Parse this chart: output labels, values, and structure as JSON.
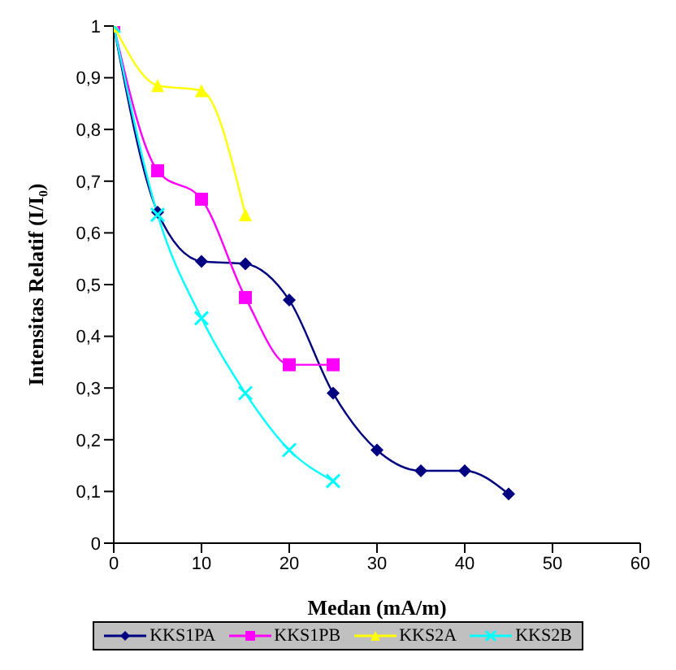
{
  "chart_data": {
    "type": "line",
    "xlabel": "Medan (mA/m)",
    "ylabel": "Intensitas Relatif (I/I₀)",
    "xlim": [
      0,
      60
    ],
    "xticks": [
      0,
      10,
      20,
      30,
      40,
      50,
      60
    ],
    "ylim": [
      0,
      1
    ],
    "yticks": [
      0,
      {
        "value": 0.1,
        "label": "0,1"
      },
      {
        "value": 0.2,
        "label": "0,2"
      },
      {
        "value": 0.3,
        "label": "0,3"
      },
      {
        "value": 0.4,
        "label": "0,4"
      },
      {
        "value": 0.5,
        "label": "0,5"
      },
      {
        "value": 0.6,
        "label": "0,6"
      },
      {
        "value": 0.7,
        "label": "0,7"
      },
      {
        "value": 0.8,
        "label": "0,8"
      },
      {
        "value": 0.9,
        "label": "0,9"
      },
      1
    ],
    "grid": false,
    "legend": "bottom",
    "line_style": "solid",
    "series": [
      {
        "name": "KKS1PA",
        "color": "#000080",
        "marker": "diamond",
        "x": [
          0,
          5,
          10,
          15,
          20,
          25,
          30,
          35,
          40,
          45
        ],
        "values": [
          1,
          0.64,
          0.545,
          0.54,
          0.47,
          0.29,
          0.18,
          0.14,
          0.14,
          0.095
        ]
      },
      {
        "name": "KKS1PB",
        "color": "#ff00ff",
        "marker": "square",
        "x": [
          0,
          5,
          10,
          15,
          20,
          25
        ],
        "values": [
          1,
          0.72,
          0.665,
          0.475,
          0.345,
          0.345
        ]
      },
      {
        "name": "KKS2A",
        "color": "#ffff00",
        "marker": "triangle",
        "x": [
          0,
          5,
          10,
          15
        ],
        "values": [
          1,
          0.885,
          0.875,
          0.635
        ]
      },
      {
        "name": "KKS2B",
        "color": "#00ffff",
        "marker": "cross",
        "x": [
          0,
          5,
          10,
          15,
          20,
          25
        ],
        "values": [
          1,
          0.635,
          0.435,
          0.29,
          0.18,
          0.12
        ]
      }
    ]
  }
}
